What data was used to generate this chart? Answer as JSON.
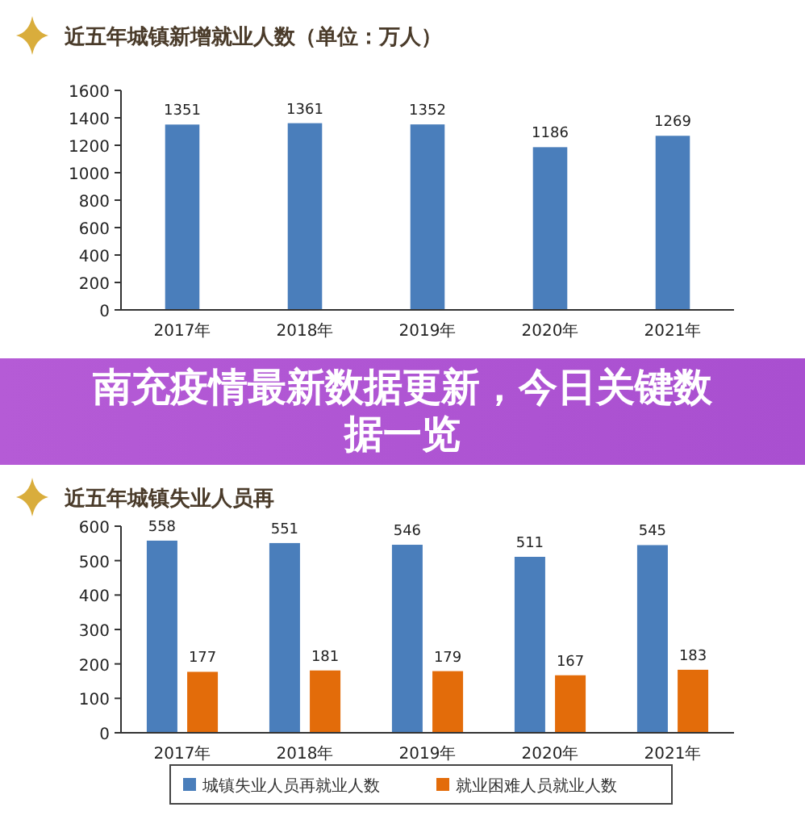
{
  "chart_data": [
    {
      "type": "bar",
      "title": "近五年城镇新增就业人数（单位：万人）",
      "categories": [
        "2017年",
        "2018年",
        "2019年",
        "2020年",
        "2021年"
      ],
      "values": [
        1351,
        1361,
        1352,
        1186,
        1269
      ],
      "color": "#4a7ebb",
      "ylim": [
        0,
        1600
      ],
      "yticks": [
        0,
        200,
        400,
        600,
        800,
        1000,
        1200,
        1400,
        1600
      ],
      "data_labels": true
    },
    {
      "type": "other",
      "title": "南充疫情最新数据更新，今日关键数据一览"
    },
    {
      "type": "bar",
      "title": "近五年城镇失业人员再",
      "categories": [
        "2017年",
        "2018年",
        "2019年",
        "2020年",
        "2021年"
      ],
      "series": [
        {
          "name": "城镇失业人员再就业人数",
          "color": "#4a7ebb",
          "values": [
            558,
            551,
            546,
            511,
            545
          ]
        },
        {
          "name": "就业困难人员就业人数",
          "color": "#e36c0a",
          "values": [
            177,
            181,
            179,
            167,
            183
          ]
        }
      ],
      "ylim": [
        0,
        600
      ],
      "yticks": [
        0,
        100,
        200,
        300,
        400,
        500,
        600
      ],
      "data_labels": true,
      "legend": "bottom"
    }
  ]
}
